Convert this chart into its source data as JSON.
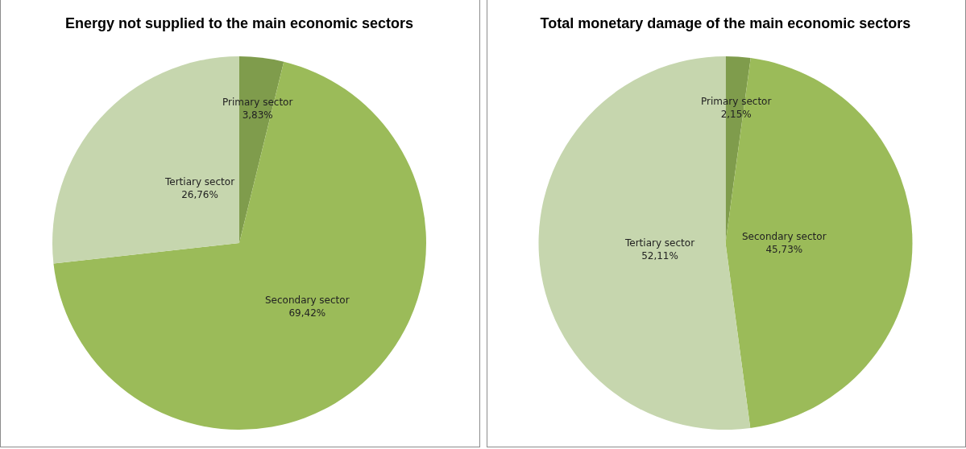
{
  "chart_data": [
    {
      "type": "pie",
      "title": "Energy not supplied to the main economic sectors",
      "categories": [
        "Primary sector",
        "Secondary sector",
        "Tertiary sector"
      ],
      "values": [
        3.83,
        69.42,
        26.76
      ],
      "value_labels": [
        "3,83%",
        "69,42%",
        "26,76%"
      ],
      "colors": [
        "#7f9c4c",
        "#9bbb59",
        "#c6d6ae"
      ]
    },
    {
      "type": "pie",
      "title": "Total monetary damage of the main economic sectors",
      "categories": [
        "Primary sector",
        "Secondary sector",
        "Tertiary sector"
      ],
      "values": [
        2.15,
        45.73,
        52.11
      ],
      "value_labels": [
        "2,15%",
        "45,73%",
        "52,11%"
      ],
      "colors": [
        "#7f9c4c",
        "#9bbb59",
        "#c6d6ae"
      ]
    }
  ]
}
